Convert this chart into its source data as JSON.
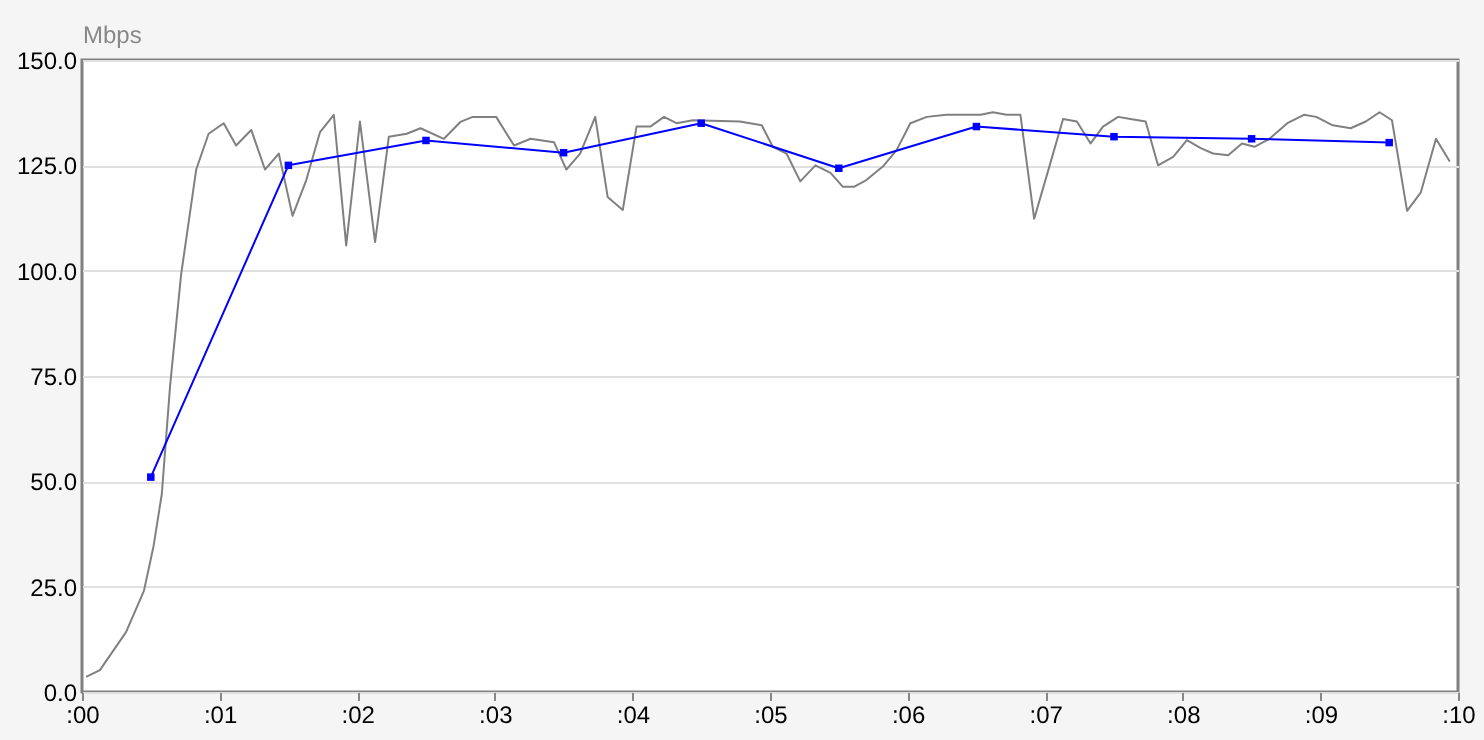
{
  "chart_data": {
    "type": "line",
    "ylabel": "Mbps",
    "xlim": [
      0,
      10
    ],
    "xticks": [
      {
        "value": 0,
        "label": ":00"
      },
      {
        "value": 1,
        "label": ":01"
      },
      {
        "value": 2,
        "label": ":02"
      },
      {
        "value": 3,
        "label": ":03"
      },
      {
        "value": 4,
        "label": ":04"
      },
      {
        "value": 5,
        "label": ":05"
      },
      {
        "value": 6,
        "label": ":06"
      },
      {
        "value": 7,
        "label": ":07"
      },
      {
        "value": 8,
        "label": ":08"
      },
      {
        "value": 9,
        "label": ":09"
      },
      {
        "value": 10,
        "label": ":10"
      }
    ],
    "ylim": [
      0,
      150
    ],
    "yticks": [
      {
        "value": 0,
        "label": "0.0"
      },
      {
        "value": 25,
        "label": "25.0"
      },
      {
        "value": 50,
        "label": "50.0"
      },
      {
        "value": 75,
        "label": "75.0"
      },
      {
        "value": 100,
        "label": "100.0"
      },
      {
        "value": 125,
        "label": "125.0"
      },
      {
        "value": 150,
        "label": "150.0"
      }
    ],
    "grid": "y",
    "series": [
      {
        "color": "#808080",
        "marker": "none",
        "x": [
          0.03,
          0.13,
          0.32,
          0.45,
          0.52,
          0.58,
          0.64,
          0.72,
          0.83,
          0.92,
          1.03,
          1.12,
          1.23,
          1.33,
          1.43,
          1.53,
          1.63,
          1.73,
          1.83,
          1.92,
          2.02,
          2.13,
          2.23,
          2.36,
          2.46,
          2.63,
          2.75,
          2.84,
          3.01,
          3.14,
          3.26,
          3.43,
          3.52,
          3.62,
          3.73,
          3.82,
          3.93,
          4.03,
          4.13,
          4.23,
          4.32,
          4.44,
          4.78,
          4.94,
          5.02,
          5.12,
          5.22,
          5.33,
          5.44,
          5.53,
          5.61,
          5.7,
          5.82,
          5.92,
          6.02,
          6.14,
          6.28,
          6.53,
          6.62,
          6.72,
          6.82,
          6.92,
          7.03,
          7.13,
          7.23,
          7.33,
          7.42,
          7.53,
          7.62,
          7.73,
          7.82,
          7.93,
          8.03,
          8.13,
          8.22,
          8.33,
          8.43,
          8.52,
          8.63,
          8.76,
          8.88,
          8.97,
          9.09,
          9.22,
          9.33,
          9.43,
          9.52,
          9.63,
          9.73,
          9.84,
          9.94
        ],
        "values": [
          3.6,
          5.2,
          14.2,
          24,
          34.6,
          47,
          72.6,
          99,
          124,
          132.5,
          135,
          129.7,
          133.4,
          124,
          127.8,
          113,
          121.5,
          132.9,
          137,
          106,
          135.4,
          106.8,
          131.8,
          132.5,
          133.8,
          131.3,
          135.3,
          136.5,
          136.5,
          129.7,
          131.3,
          130.5,
          124,
          127.8,
          136.5,
          117.5,
          114.4,
          134.2,
          134.2,
          136.5,
          135,
          135.7,
          135.4,
          134.5,
          129.4,
          127.8,
          121.2,
          125,
          123.2,
          119.9,
          119.9,
          121.5,
          124.7,
          128.6,
          135,
          136.5,
          137,
          137,
          137.6,
          137,
          137,
          112.3,
          124.7,
          136,
          135.4,
          130.2,
          134.2,
          136.5,
          136,
          135.4,
          125,
          127,
          131,
          129.1,
          127.8,
          127.4,
          130.2,
          129.4,
          131.3,
          135,
          137,
          136.5,
          134.5,
          133.8,
          135.4,
          137.6,
          135.7,
          114.2,
          118.6,
          131.3,
          125.9
        ]
      },
      {
        "color": "#0000ff",
        "marker": "square",
        "x": [
          0.5,
          1.5,
          2.5,
          3.5,
          4.5,
          5.5,
          6.5,
          7.5,
          8.5,
          9.5
        ],
        "values": [
          51,
          125,
          130.9,
          128,
          135,
          124.3,
          134.2,
          131.8,
          131.3,
          130.4
        ]
      }
    ]
  }
}
